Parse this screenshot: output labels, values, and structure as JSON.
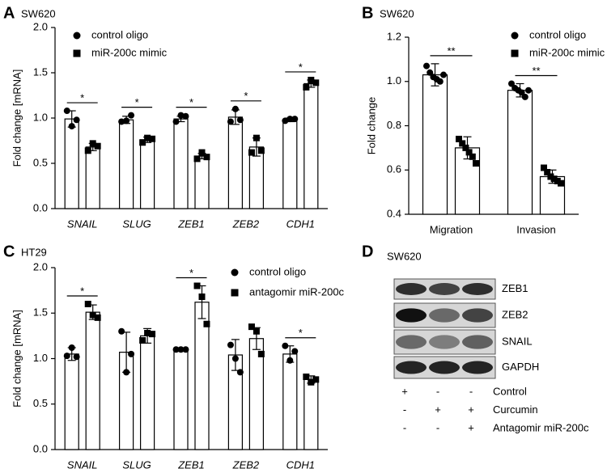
{
  "chart_data": [
    {
      "type": "bar",
      "panel": "A",
      "subtitle": "SW620",
      "ylabel": "Fold change [mRNA]",
      "categories": [
        "SNAIL",
        "SLUG",
        "ZEB1",
        "ZEB2",
        "CDH1"
      ],
      "category_style": "italic",
      "ylim": [
        0,
        2
      ],
      "yticks": [
        {
          "value": 0,
          "label": "0.0"
        },
        0.5,
        {
          "value": 1,
          "label": "1.0"
        },
        1.5,
        {
          "value": 2,
          "label": "2.0"
        }
      ],
      "legend": "upper right",
      "series": [
        {
          "name": "control oligo",
          "color": "#000000",
          "marker": "circle",
          "values": [
            0.99,
            0.98,
            0.99,
            1.01,
            0.98
          ],
          "errors": [
            0.09,
            0.04,
            0.03,
            0.08,
            0.02
          ],
          "points": [
            [
              1.08,
              0.91,
              0.98
            ],
            [
              0.96,
              0.97,
              1.03
            ],
            [
              0.96,
              1.03,
              1.02
            ],
            [
              0.96,
              1.1,
              0.98
            ],
            [
              0.97,
              0.99,
              0.99
            ]
          ]
        },
        {
          "name": "miR-200c mimic",
          "color": "#000000",
          "marker": "square",
          "values": [
            0.68,
            0.76,
            0.58,
            0.68,
            1.38
          ],
          "errors": [
            0.04,
            0.03,
            0.03,
            0.1,
            0.04
          ],
          "points": [
            [
              0.64,
              0.72,
              0.69
            ],
            [
              0.73,
              0.78,
              0.77
            ],
            [
              0.55,
              0.62,
              0.57
            ],
            [
              0.62,
              0.78,
              0.64
            ],
            [
              1.34,
              1.42,
              1.39
            ]
          ]
        }
      ],
      "annotations": [
        "*",
        "*",
        "*",
        "*",
        "*"
      ]
    },
    {
      "type": "bar",
      "panel": "B",
      "subtitle": "SW620",
      "ylabel": "Fold change",
      "categories": [
        "Migration",
        "Invasion"
      ],
      "category_style": "normal",
      "ylim": [
        0.4,
        1.2
      ],
      "yticks": [
        0.4,
        0.6,
        0.8,
        {
          "value": 1,
          "label": "1.0"
        },
        1.2
      ],
      "legend": "upper right",
      "series": [
        {
          "name": "control oligo",
          "color": "#000000",
          "marker": "circle",
          "values": [
            1.03,
            0.96
          ],
          "errors": [
            0.05,
            0.03
          ],
          "points": [
            [
              1.07,
              1.04,
              1.02,
              1.01,
              1.0,
              1.03
            ],
            [
              0.99,
              0.97,
              0.96,
              0.95,
              0.93,
              0.96
            ]
          ]
        },
        {
          "name": "miR-200c mimic",
          "color": "#000000",
          "marker": "square",
          "values": [
            0.7,
            0.57
          ],
          "errors": [
            0.05,
            0.03
          ],
          "points": [
            [
              0.74,
              0.72,
              0.7,
              0.68,
              0.66,
              0.63
            ],
            [
              0.61,
              0.59,
              0.57,
              0.56,
              0.55,
              0.54
            ]
          ]
        }
      ],
      "annotations": [
        "**",
        "**"
      ]
    },
    {
      "type": "bar",
      "panel": "C",
      "subtitle": "HT29",
      "ylabel": "Fold change [mRNA]",
      "categories": [
        "SNAIL",
        "SLUG",
        "ZEB1",
        "ZEB2",
        "CDH1"
      ],
      "category_style": "italic",
      "ylim": [
        0,
        2
      ],
      "yticks": [
        {
          "value": 0,
          "label": "0.0"
        },
        0.5,
        {
          "value": 1,
          "label": "1.0"
        },
        1.5,
        {
          "value": 2,
          "label": "2.0"
        }
      ],
      "legend": "upper right",
      "series": [
        {
          "name": "control oligo",
          "color": "#000000",
          "marker": "circle",
          "values": [
            1.05,
            1.07,
            1.1,
            1.04,
            1.05
          ],
          "errors": [
            0.07,
            0.22,
            0.01,
            0.17,
            0.09
          ],
          "points": [
            [
              1.03,
              1.12,
              1.02
            ],
            [
              1.3,
              0.85,
              1.05
            ],
            [
              1.1,
              1.1,
              1.1
            ],
            [
              1.15,
              1.0,
              0.85
            ],
            [
              1.14,
              0.98,
              1.08
            ]
          ]
        },
        {
          "name": "antagomir miR-200c",
          "color": "#000000",
          "marker": "square",
          "values": [
            1.51,
            1.25,
            1.62,
            1.22,
            0.77
          ],
          "errors": [
            0.08,
            0.08,
            0.18,
            0.12,
            0.04
          ],
          "points": [
            [
              1.6,
              1.48,
              1.45
            ],
            [
              1.2,
              1.28,
              1.27
            ],
            [
              1.8,
              1.68,
              1.38
            ],
            [
              1.35,
              1.3,
              1.05
            ],
            [
              0.8,
              0.74,
              0.77
            ]
          ]
        }
      ],
      "annotations": [
        "*",
        null,
        "*",
        null,
        "*"
      ]
    }
  ],
  "blot": {
    "panel": "D",
    "subtitle": "SW620",
    "bands": [
      "ZEB1",
      "ZEB2",
      "SNAIL",
      "GAPDH"
    ],
    "conditions": [
      {
        "name": "Control",
        "marks": [
          "+",
          "-",
          "-"
        ]
      },
      {
        "name": "Curcumin",
        "marks": [
          "-",
          "+",
          "+"
        ]
      },
      {
        "name": "Antagomir miR-200c",
        "marks": [
          "-",
          "-",
          "+"
        ]
      }
    ]
  }
}
